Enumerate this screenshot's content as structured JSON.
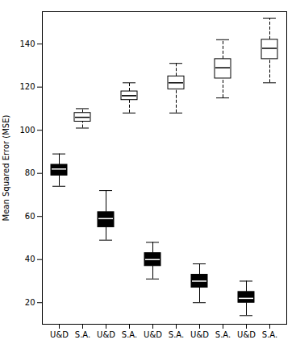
{
  "chart_data": {
    "type": "box",
    "categories": [
      "U&D",
      "S.A.",
      "U&D",
      "S.A.",
      "U&D",
      "S.A.",
      "U&D",
      "S.A.",
      "U&D",
      "S.A."
    ],
    "values": [
      {
        "whislo": 74,
        "q1": 79,
        "med": 82,
        "q3": 84,
        "whishi": 89
      },
      {
        "whislo": 101,
        "q1": 104,
        "med": 106,
        "q3": 108,
        "whishi": 110
      },
      {
        "whislo": 49,
        "q1": 55,
        "med": 59,
        "q3": 62,
        "whishi": 72
      },
      {
        "whislo": 108,
        "q1": 114,
        "med": 116,
        "q3": 118,
        "whishi": 122
      },
      {
        "whislo": 31,
        "q1": 37,
        "med": 40,
        "q3": 43,
        "whishi": 48
      },
      {
        "whislo": 108,
        "q1": 119,
        "med": 122,
        "q3": 125,
        "whishi": 131
      },
      {
        "whislo": 20,
        "q1": 27,
        "med": 30,
        "q3": 33,
        "whishi": 38
      },
      {
        "whislo": 115,
        "q1": 124,
        "med": 129,
        "q3": 133,
        "whishi": 142
      },
      {
        "whislo": 14,
        "q1": 20,
        "med": 22,
        "q3": 25,
        "whishi": 30
      },
      {
        "whislo": 122,
        "q1": 133,
        "med": 138,
        "q3": 142,
        "whishi": 152
      }
    ],
    "colors": [
      "black",
      "white",
      "black",
      "white",
      "black",
      "white",
      "black",
      "white",
      "black",
      "white"
    ],
    "ylabel": "Mean Squared Error (MSE)",
    "ylim": [
      10,
      155
    ],
    "yticks": [
      20,
      40,
      60,
      80,
      100,
      120,
      140
    ],
    "grid": false
  }
}
